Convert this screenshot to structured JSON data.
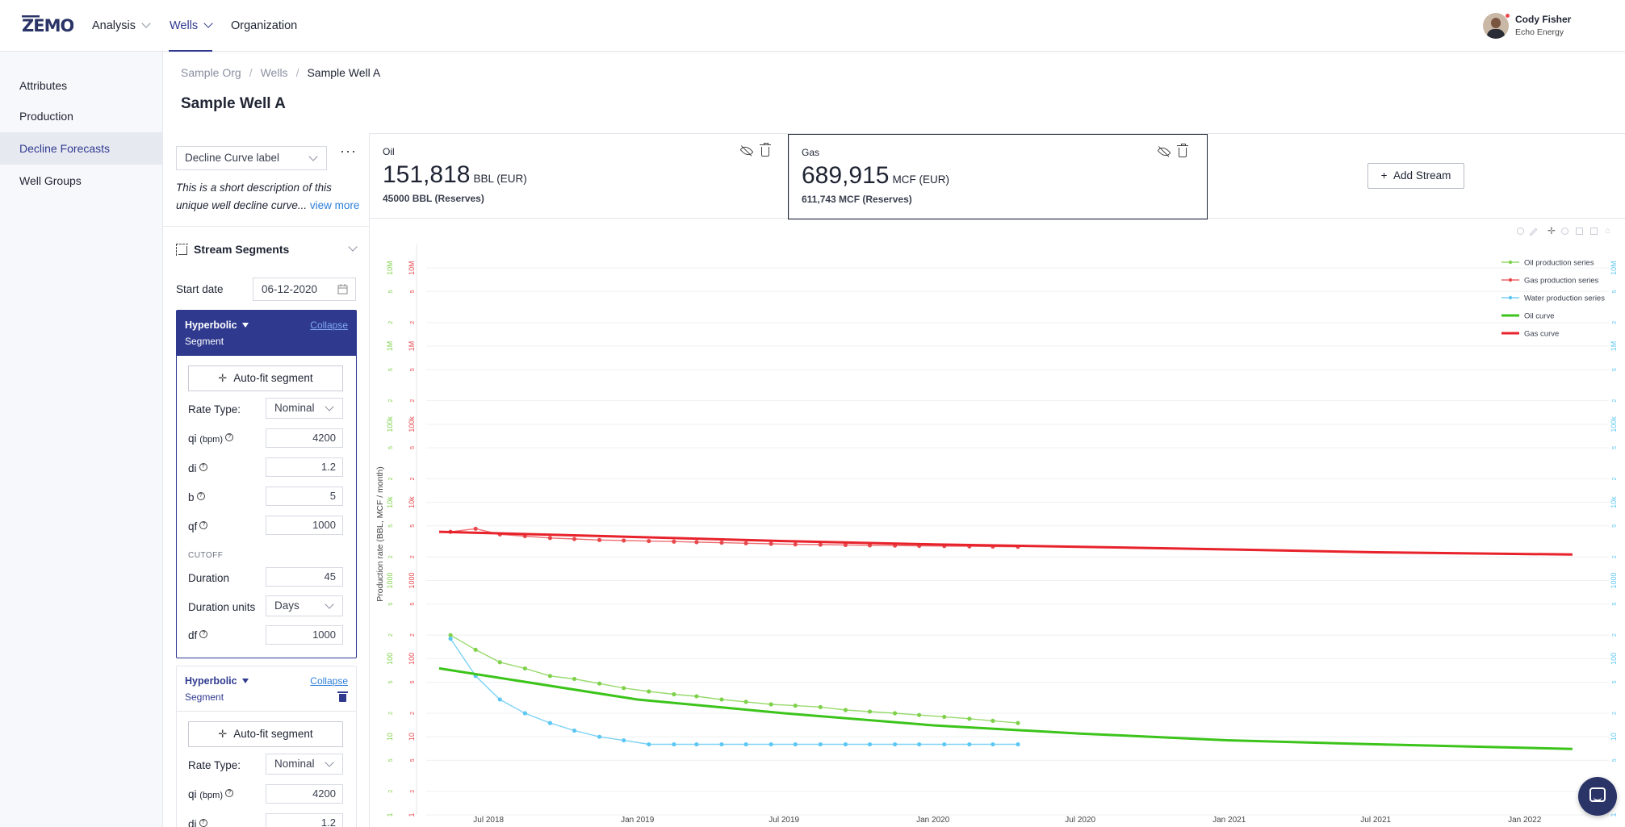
{
  "app": {
    "logo": "ZEMO"
  },
  "nav": {
    "items": [
      {
        "label": "Analysis",
        "dropdown": true
      },
      {
        "label": "Wells",
        "dropdown": true,
        "active": true
      },
      {
        "label": "Organization",
        "dropdown": false
      }
    ]
  },
  "user": {
    "name": "Cody Fisher",
    "org": "Echo Energy"
  },
  "sidebar": {
    "items": [
      {
        "label": "Attributes"
      },
      {
        "label": "Production"
      },
      {
        "label": "Decline Forecasts",
        "active": true
      },
      {
        "label": "Well Groups"
      }
    ]
  },
  "breadcrumb": [
    "Sample Org",
    "Wells",
    "Sample Well A"
  ],
  "page_title": "Sample Well A",
  "panel": {
    "curve_select": "Decline Curve label",
    "more": "···",
    "description": "This is a short description of this unique well decline curve...",
    "view_more": "view more",
    "stream_segments": "Stream Segments",
    "start_date_label": "Start date",
    "start_date": "06-12-2020",
    "segments": [
      {
        "type": "Hyperbolic",
        "sub": "Segment",
        "collapse": "Collapse",
        "autofit": "Auto-fit segment",
        "rate_type_label": "Rate Type:",
        "rate_type": "Nominal",
        "qi_label": "qi",
        "qi_unit": "(bpm)",
        "qi": "4200",
        "di_label": "di",
        "di": "1.2",
        "b_label": "b",
        "b": "5",
        "qf_label": "qf",
        "qf": "1000",
        "cutoff": "CUTOFF",
        "duration_label": "Duration",
        "duration": "45",
        "duration_units_label": "Duration units",
        "duration_units": "Days",
        "df_label": "df",
        "df": "1000"
      },
      {
        "type": "Hyperbolic",
        "sub": "Segment",
        "collapse": "Collapse",
        "autofit": "Auto-fit segment",
        "rate_type_label": "Rate Type:",
        "rate_type": "Nominal",
        "qi_label": "qi",
        "qi_unit": "(bpm)",
        "qi": "4200",
        "di_label": "di",
        "di": "1.2"
      }
    ]
  },
  "streams": [
    {
      "name": "Oil",
      "value": "151,818",
      "unit": "BBL (EUR)",
      "reserves": "45000 BBL (Reserves)"
    },
    {
      "name": "Gas",
      "value": "689,915",
      "unit": "MCF (EUR)",
      "reserves": "611,743 MCF (Reserves)",
      "selected": true
    }
  ],
  "add_stream": "Add Stream",
  "icons": {
    "eye": "eye-off-icon",
    "trash": "trash-icon",
    "chat": "chat-icon"
  },
  "colors": {
    "accent": "#2f3a8f",
    "oil": "#7fd14a",
    "gas": "#e8474c",
    "water": "#5cc7f2",
    "oil_curve": "#3cc41b",
    "gas_curve": "#e8222b"
  },
  "chart_data": {
    "type": "line",
    "ylabel": "Production rate (BBL, MCF / month)",
    "yscale": "log",
    "ylim": [
      1,
      20000000
    ],
    "y_tick_labels": [
      "10M",
      "5",
      "2",
      "1M",
      "5",
      "2",
      "100k",
      "5",
      "2",
      "10k",
      "5",
      "2",
      "1000",
      "5",
      "2",
      "100",
      "5",
      "2",
      "10",
      "5",
      "2",
      "1"
    ],
    "x_tick_labels": [
      "Jul 2018",
      "Jan 2019",
      "Jul 2019",
      "Jan 2020",
      "Jul 2020",
      "Jan 2021",
      "Jul 2021",
      "Jan 2022"
    ],
    "xlim": [
      "2018-04-15",
      "2022-04-15"
    ],
    "legend": [
      "Oil production series",
      "Gas production series",
      "Water production series",
      "Oil curve",
      "Gas curve"
    ],
    "legend_position": "top-right",
    "series": [
      {
        "name": "Oil production series",
        "type": "scatter-line",
        "x": [
          "2018-05-15",
          "2018-06-15",
          "2018-07-15",
          "2018-08-15",
          "2018-09-15",
          "2018-10-15",
          "2018-11-15",
          "2018-12-15",
          "2019-01-15",
          "2019-02-15",
          "2019-03-15",
          "2019-04-15",
          "2019-05-15",
          "2019-06-15",
          "2019-07-15",
          "2019-08-15",
          "2019-09-15",
          "2019-10-15",
          "2019-11-15",
          "2019-12-15",
          "2020-01-15",
          "2020-02-15",
          "2020-03-15",
          "2020-04-15"
        ],
        "y": [
          200,
          130,
          90,
          75,
          60,
          55,
          48,
          42,
          38,
          35,
          33,
          30,
          28,
          26,
          25,
          24,
          22,
          21,
          20,
          19,
          18,
          17,
          16,
          15
        ]
      },
      {
        "name": "Gas production series",
        "type": "scatter-line",
        "x": [
          "2018-05-15",
          "2018-06-15",
          "2018-07-15",
          "2018-08-15",
          "2018-09-15",
          "2018-10-15",
          "2018-11-15",
          "2018-12-15",
          "2019-01-15",
          "2019-02-15",
          "2019-03-15",
          "2019-04-15",
          "2019-05-15",
          "2019-06-15",
          "2019-07-15",
          "2019-08-15",
          "2019-09-15",
          "2019-10-15",
          "2019-11-15",
          "2019-12-15",
          "2020-01-15",
          "2020-02-15",
          "2020-03-15",
          "2020-04-15"
        ],
        "y": [
          4200,
          4600,
          3900,
          3700,
          3500,
          3400,
          3300,
          3250,
          3200,
          3150,
          3100,
          3050,
          3000,
          2950,
          2900,
          2880,
          2850,
          2820,
          2800,
          2780,
          2760,
          2740,
          2720,
          2700
        ]
      },
      {
        "name": "Water production series",
        "type": "scatter-line",
        "x": [
          "2018-05-15",
          "2018-06-15",
          "2018-07-15",
          "2018-08-15",
          "2018-09-15",
          "2018-10-15",
          "2018-11-15",
          "2018-12-15",
          "2019-01-15",
          "2019-02-15",
          "2019-03-15",
          "2019-04-15",
          "2019-05-15",
          "2019-06-15",
          "2019-07-15",
          "2019-08-15",
          "2019-09-15",
          "2019-10-15",
          "2019-11-15",
          "2019-12-15",
          "2020-01-15",
          "2020-02-15",
          "2020-03-15",
          "2020-04-15"
        ],
        "y": [
          180,
          60,
          30,
          20,
          15,
          12,
          10,
          9,
          8,
          8,
          8,
          8,
          8,
          8,
          8,
          8,
          8,
          8,
          8,
          8,
          8,
          8,
          8,
          8
        ]
      },
      {
        "name": "Oil curve",
        "type": "line",
        "x": [
          "2018-05-01",
          "2019-01-01",
          "2019-07-01",
          "2020-01-01",
          "2020-07-01",
          "2021-01-01",
          "2021-07-01",
          "2022-03-01"
        ],
        "y": [
          75,
          30,
          20,
          14,
          11,
          9,
          8,
          7
        ]
      },
      {
        "name": "Gas curve",
        "type": "line",
        "x": [
          "2018-05-01",
          "2019-01-01",
          "2019-07-01",
          "2020-01-01",
          "2020-07-01",
          "2021-01-01",
          "2021-07-01",
          "2022-03-01"
        ],
        "y": [
          4200,
          3600,
          3200,
          2900,
          2700,
          2500,
          2300,
          2150
        ]
      }
    ]
  }
}
